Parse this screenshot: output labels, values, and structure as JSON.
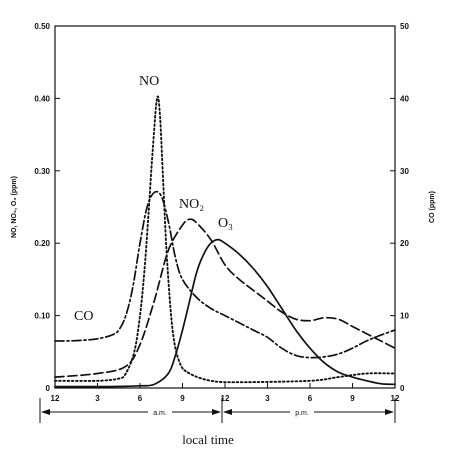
{
  "chart_data": {
    "type": "line",
    "xlabel": "local time",
    "ylabel_left": "NO, NO₂, O₃ (ppm)",
    "ylabel_right": "CO (ppm)",
    "x_ticks": [
      "12",
      "3",
      "6",
      "9",
      "12",
      "3",
      "6",
      "9",
      "12"
    ],
    "x_range": [
      0,
      24
    ],
    "y_left_range": [
      0,
      0.5
    ],
    "y_left_ticks": [
      "0",
      "0.10",
      "0.20",
      "0.30",
      "0.40",
      "0.50"
    ],
    "y_right_range": [
      0,
      50
    ],
    "y_right_ticks": [
      "0",
      "10",
      "20",
      "30",
      "40",
      "50"
    ],
    "periods": [
      "a.m.",
      "p.m."
    ],
    "series": [
      {
        "name": "NO",
        "axis": "left",
        "style": "dotted",
        "x": [
          0,
          3,
          4.5,
          5,
          5.6,
          6,
          6.3,
          6.6,
          6.9,
          7.2,
          7.4,
          7.6,
          7.9,
          8.3,
          8.8,
          9.5,
          11,
          13,
          18,
          20,
          22,
          24
        ],
        "y": [
          0.01,
          0.01,
          0.013,
          0.02,
          0.05,
          0.1,
          0.16,
          0.24,
          0.33,
          0.4,
          0.38,
          0.3,
          0.18,
          0.08,
          0.035,
          0.02,
          0.01,
          0.008,
          0.01,
          0.015,
          0.02,
          0.02
        ]
      },
      {
        "name": "NO₂",
        "axis": "left",
        "style": "dashed",
        "x": [
          0,
          3,
          5,
          6,
          7,
          8,
          9,
          9.5,
          10,
          11,
          12,
          13,
          14,
          15,
          16,
          17,
          18,
          19,
          20,
          21,
          22,
          23,
          24
        ],
        "y": [
          0.015,
          0.02,
          0.03,
          0.06,
          0.12,
          0.19,
          0.225,
          0.233,
          0.228,
          0.205,
          0.17,
          0.15,
          0.135,
          0.12,
          0.105,
          0.095,
          0.093,
          0.097,
          0.095,
          0.085,
          0.075,
          0.065,
          0.055
        ]
      },
      {
        "name": "O₃",
        "axis": "left",
        "style": "solid",
        "x": [
          0,
          4,
          6,
          7,
          8,
          8.5,
          9,
          9.5,
          10,
          10.5,
          11,
          11.5,
          12,
          13,
          14,
          15,
          16,
          17,
          18,
          19,
          20,
          21,
          22,
          23,
          24
        ],
        "y": [
          0.002,
          0.002,
          0.003,
          0.005,
          0.02,
          0.045,
          0.08,
          0.12,
          0.16,
          0.185,
          0.2,
          0.205,
          0.2,
          0.185,
          0.165,
          0.14,
          0.11,
          0.08,
          0.055,
          0.035,
          0.022,
          0.015,
          0.01,
          0.006,
          0.005
        ]
      },
      {
        "name": "CO",
        "axis": "right",
        "style": "dash-dot",
        "x": [
          0,
          1,
          2,
          3,
          4,
          4.5,
          5,
          5.5,
          6,
          6.5,
          7,
          7.5,
          8,
          8.5,
          9,
          10,
          11,
          12,
          13,
          14,
          15,
          16,
          17,
          18,
          19,
          20,
          21,
          22,
          23,
          24
        ],
        "y": [
          6.5,
          6.5,
          6.6,
          6.8,
          7.3,
          8,
          10,
          14,
          20,
          25,
          27,
          26.5,
          23,
          18,
          15,
          12.5,
          11,
          10,
          9,
          8,
          7,
          5.5,
          4.5,
          4.2,
          4.3,
          4.7,
          5.5,
          6.5,
          7.3,
          8
        ]
      }
    ]
  }
}
